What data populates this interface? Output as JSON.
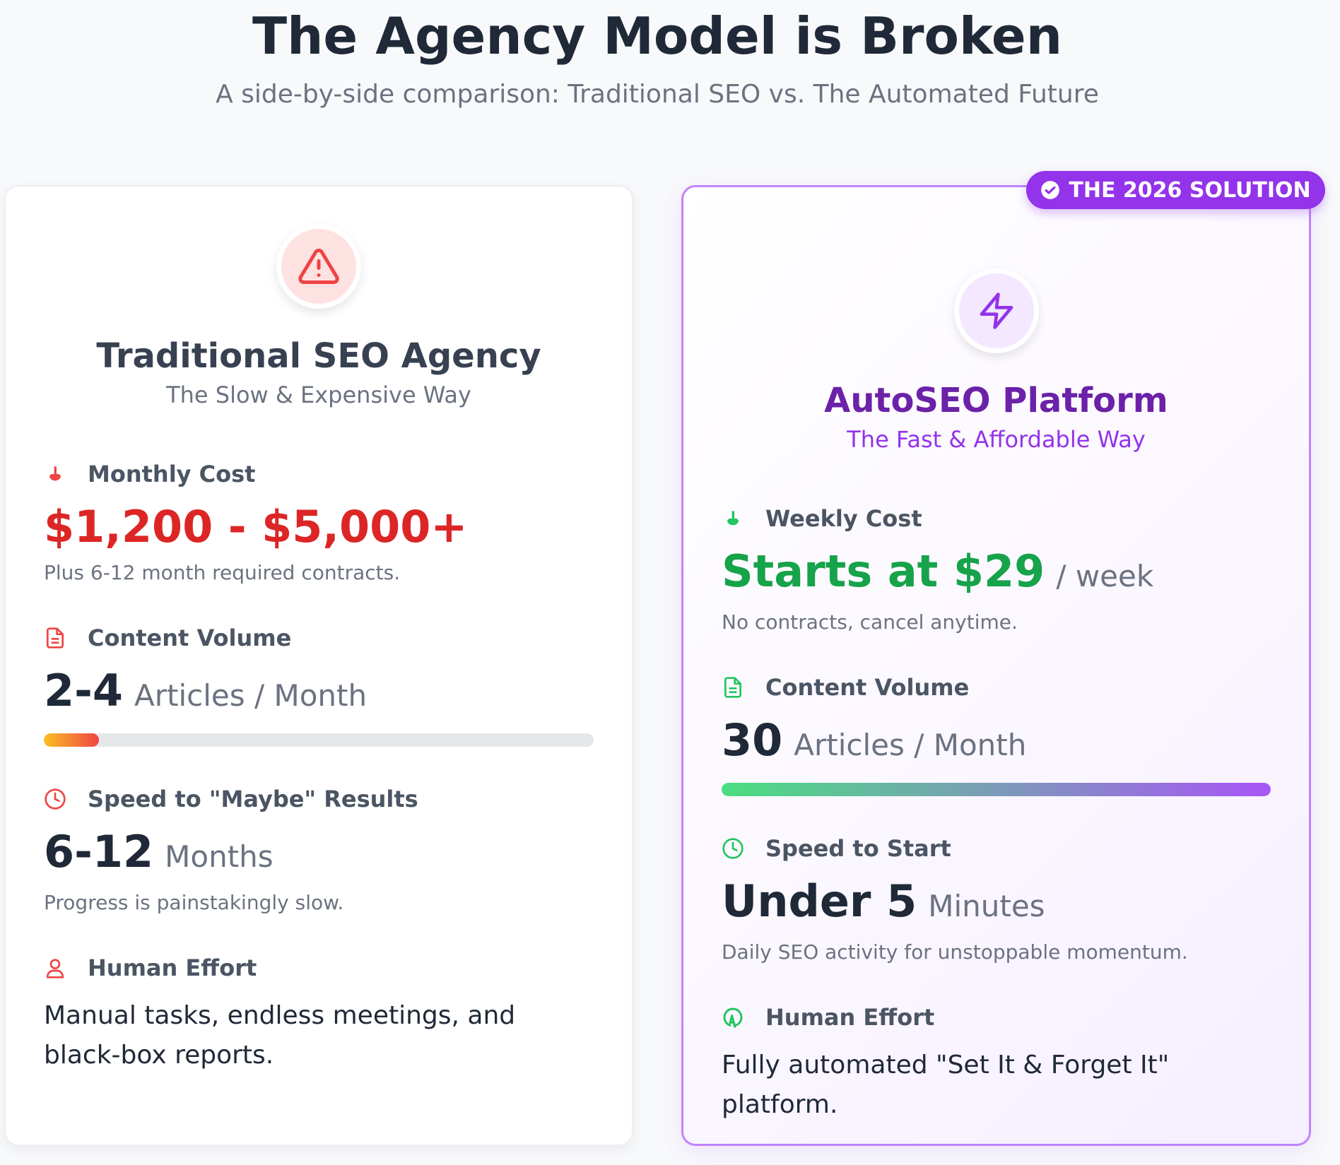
{
  "header": {
    "title": "The Agency Model is Broken",
    "subtitle": "A side-by-side comparison: Traditional SEO vs. The Automated Future"
  },
  "badge": {
    "label": "THE 2026 SOLUTION",
    "icon": "check-circle-icon",
    "color": "#9333ea"
  },
  "traditional": {
    "icon": "warning-triangle-icon",
    "title": "Traditional SEO Agency",
    "subtitle": "The Slow & Expensive Way",
    "cost": {
      "label": "Monthly Cost",
      "value": "$1,200 - $5,000+",
      "note": "Plus 6-12 month required contracts."
    },
    "volume": {
      "label": "Content Volume",
      "value": "2-4",
      "unit": "Articles / Month",
      "progress": 0.1
    },
    "speed": {
      "label": "Speed to \"Maybe\" Results",
      "value": "6-12",
      "unit": "Months",
      "note": "Progress is painstakingly slow."
    },
    "effort": {
      "label": "Human Effort",
      "text": "Manual tasks, endless meetings, and black-box reports."
    },
    "accent": "#dc2626"
  },
  "autoseo": {
    "icon": "lightning-bolt-icon",
    "title": "AutoSEO Platform",
    "subtitle": "The Fast & Affordable Way",
    "cost": {
      "label": "Weekly Cost",
      "value": "Starts at $29",
      "unit": "/ week",
      "note": "No contracts, cancel anytime."
    },
    "volume": {
      "label": "Content Volume",
      "value": "30",
      "unit": "Articles / Month",
      "progress": 1.0
    },
    "speed": {
      "label": "Speed to Start",
      "value": "Under 5",
      "unit": "Minutes",
      "note": "Daily SEO activity for unstoppable momentum."
    },
    "effort": {
      "label": "Human Effort",
      "text": "Fully automated \"Set It & Forget It\" platform."
    },
    "accent": "#16a34a"
  }
}
